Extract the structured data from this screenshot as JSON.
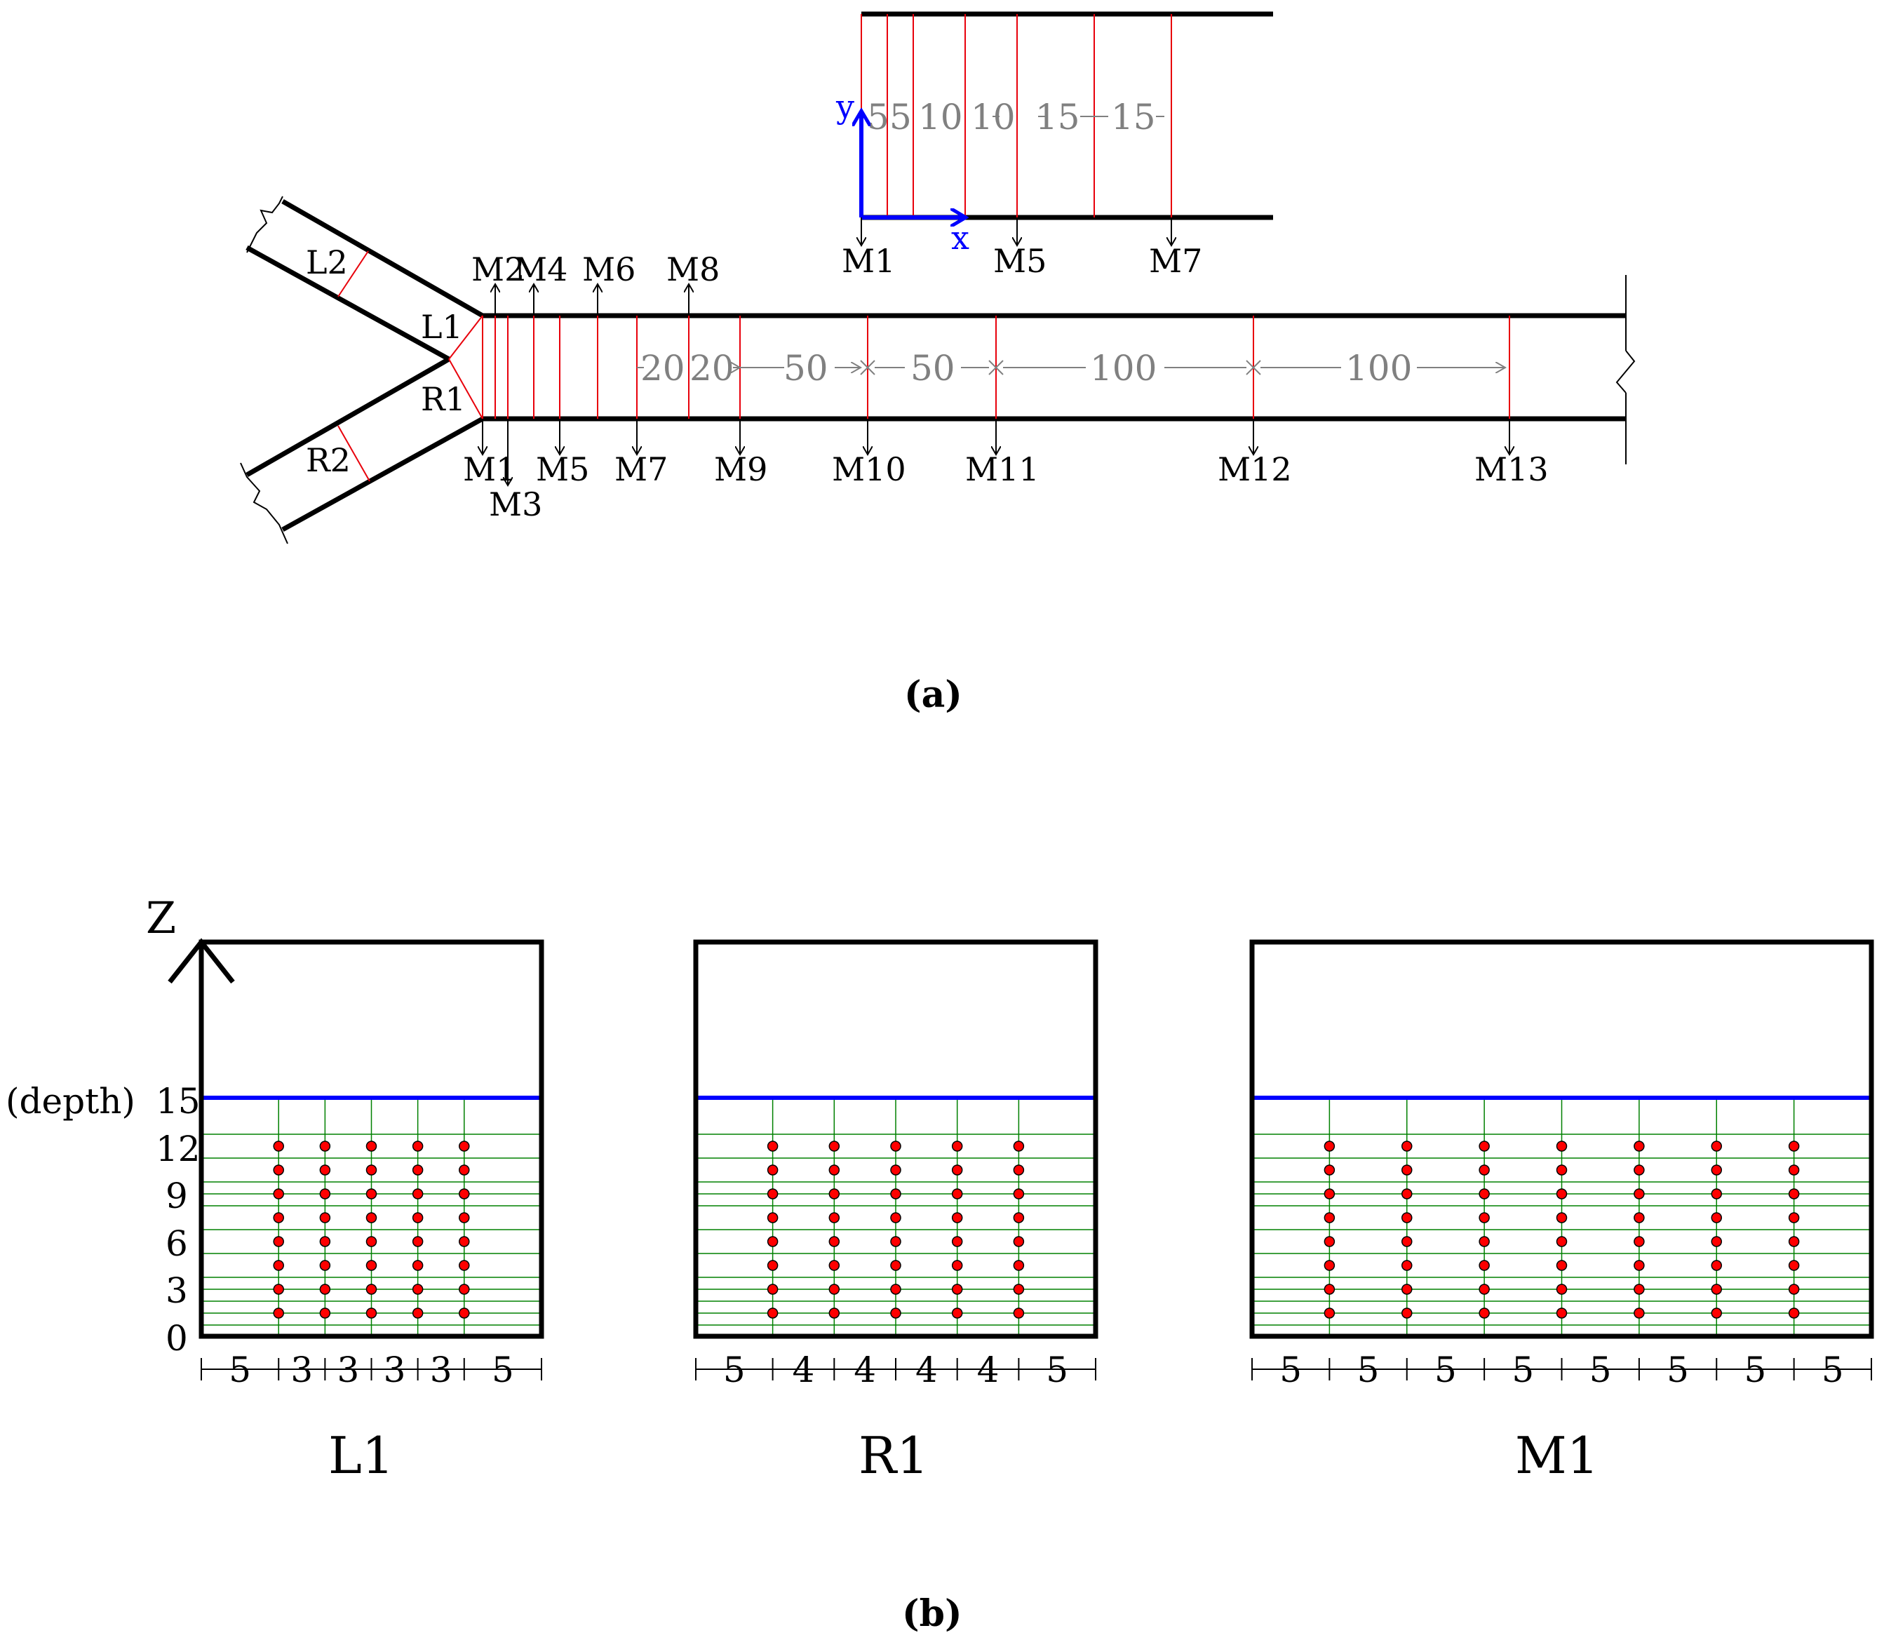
{
  "panel_a": {
    "caption": "(a)",
    "branch_labels": {
      "l2": "L2",
      "l1": "L1",
      "r1": "R1",
      "r2": "R2"
    },
    "top_labels": [
      "M2",
      "M4",
      "M6",
      "M8"
    ],
    "bottom_labels": [
      "M1",
      "M3",
      "M5",
      "M7",
      "M9",
      "M10",
      "M11",
      "M12",
      "M13"
    ],
    "spacings": [
      "20",
      "20",
      "50",
      "50",
      "100",
      "100"
    ],
    "inset": {
      "axis_x": "x",
      "axis_y": "y",
      "spacings": [
        "5",
        "5",
        "10",
        "10",
        "15",
        "15"
      ],
      "labels": [
        "M1",
        "M5",
        "M7"
      ]
    }
  },
  "panel_b": {
    "caption": "(b)",
    "z_label": "Z",
    "depth_label": "(depth)",
    "depth_ticks": [
      "15",
      "12",
      "9",
      "6",
      "3",
      "0"
    ],
    "sections": [
      {
        "name": "L1",
        "spacings": [
          "5",
          "3",
          "3",
          "3",
          "3",
          "5"
        ]
      },
      {
        "name": "R1",
        "spacings": [
          "5",
          "4",
          "4",
          "4",
          "4",
          "5"
        ]
      },
      {
        "name": "M1",
        "spacings": [
          "5",
          "5",
          "5",
          "5",
          "5",
          "5",
          "5",
          "5"
        ]
      }
    ]
  },
  "colors": {
    "outline": "#000000",
    "section_line": "#e8000b",
    "dimension": "#808080",
    "water_surface": "#0000ff",
    "grid": "#008000",
    "point": "#ff0000",
    "axis": "#0000ff"
  }
}
